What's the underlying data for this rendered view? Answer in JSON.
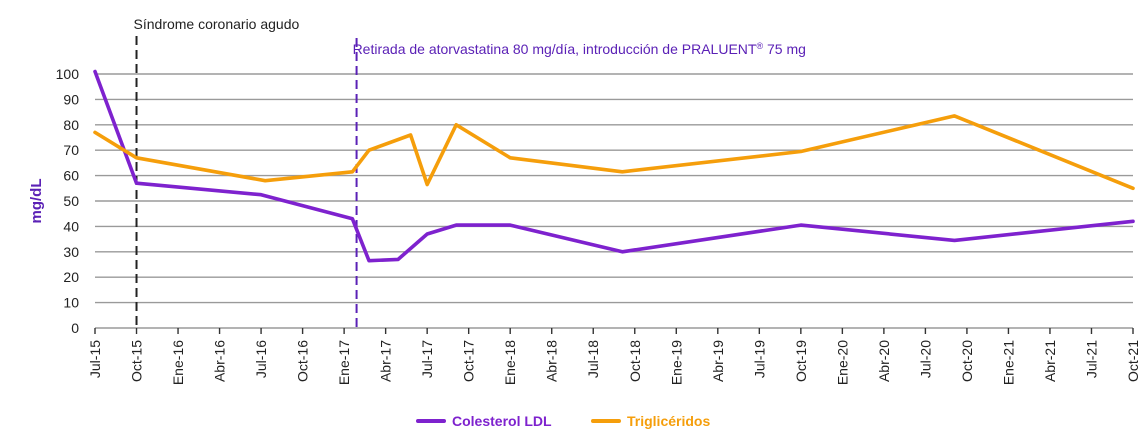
{
  "chart_data": {
    "type": "line",
    "title": "",
    "xlabel": "",
    "ylabel": "mg/dL",
    "ylim": [
      0,
      100
    ],
    "yticks": [
      0,
      10,
      20,
      30,
      40,
      50,
      60,
      70,
      80,
      90,
      100
    ],
    "x_tick_labels": [
      "Jul-15",
      "Oct-15",
      "Ene-16",
      "Abr-16",
      "Jul-16",
      "Oct-16",
      "Ene-17",
      "Abr-17",
      "Jul-17",
      "Oct-17",
      "Ene-18",
      "Abr-18",
      "Jul-18",
      "Oct-18",
      "Ene-19",
      "Abr-19",
      "Jul-19",
      "Oct-19",
      "Ene-20",
      "Abr-20",
      "Jul-20",
      "Oct-20",
      "Ene-21",
      "Abr-21",
      "Jul-21",
      "Oct-21"
    ],
    "grid": "horizontal",
    "legend_position": "bottom",
    "annotations": [
      {
        "text": "Síndrome coronario agudo",
        "x": 1.0,
        "color": "#222222"
      },
      {
        "text": "Retirada de atorvastatina 80 mg/día, introducción de PRALUENT",
        "superscript": "®",
        "text_after": " 75 mg",
        "x": 6.3,
        "color": "#5b21b6"
      }
    ],
    "series": [
      {
        "name": "Colesterol LDL",
        "color": "#7e22ce",
        "points": [
          [
            0,
            101
          ],
          [
            1,
            57
          ],
          [
            4,
            52.5
          ],
          [
            6.2,
            43
          ],
          [
            6.6,
            26.5
          ],
          [
            7.3,
            27
          ],
          [
            8,
            37
          ],
          [
            8.7,
            40.5
          ],
          [
            10,
            40.5
          ],
          [
            12.7,
            30
          ],
          [
            17,
            40.5
          ],
          [
            20.7,
            34.5
          ],
          [
            25,
            42
          ]
        ]
      },
      {
        "name": "Triglicéridos",
        "color": "#f59e0b",
        "points": [
          [
            0,
            77
          ],
          [
            1,
            67
          ],
          [
            4.1,
            58
          ],
          [
            6.2,
            61.5
          ],
          [
            6.6,
            70
          ],
          [
            7.6,
            76
          ],
          [
            8,
            56.5
          ],
          [
            8.7,
            80
          ],
          [
            10,
            67
          ],
          [
            12.7,
            61.5
          ],
          [
            17,
            69.5
          ],
          [
            20.7,
            83.5
          ],
          [
            25,
            55
          ]
        ]
      }
    ]
  }
}
